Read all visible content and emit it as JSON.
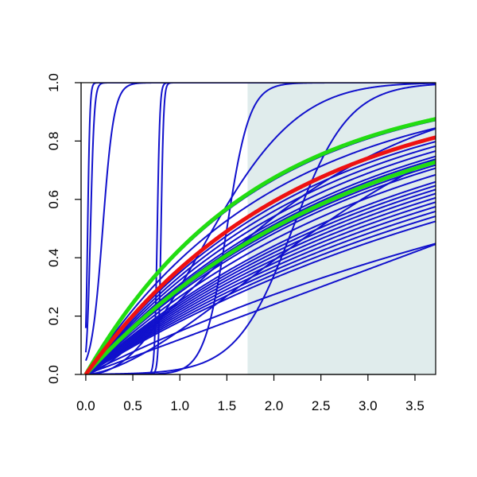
{
  "chart_data": {
    "type": "line",
    "title": "",
    "xlabel": "",
    "ylabel": "",
    "xlim": [
      -0.05,
      3.72
    ],
    "ylim": [
      0,
      1
    ],
    "x_ticks": [
      "0.0",
      "0.5",
      "1.0",
      "1.5",
      "2.0",
      "2.5",
      "3.0",
      "3.5"
    ],
    "y_ticks": [
      "0.0",
      "0.2",
      "0.4",
      "0.6",
      "0.8",
      "1.0"
    ],
    "shaded_region": {
      "x_from": 1.72,
      "x_to": 3.72,
      "color": "#e0ecec"
    },
    "colors": {
      "ensemble": "#1111cc",
      "green": "#22dd11",
      "red": "#ee1111",
      "axis": "#000000"
    },
    "series": [
      {
        "color": "ensemble",
        "kind": "logistic",
        "mid": 0.02,
        "scale": 0.012
      },
      {
        "color": "ensemble",
        "kind": "logistic",
        "mid": 0.05,
        "scale": 0.02
      },
      {
        "color": "ensemble",
        "kind": "logistic",
        "mid": 0.18,
        "scale": 0.06
      },
      {
        "color": "ensemble",
        "kind": "logistic",
        "mid": 0.76,
        "scale": 0.014
      },
      {
        "color": "ensemble",
        "kind": "logistic",
        "mid": 0.8,
        "scale": 0.014
      },
      {
        "color": "ensemble",
        "kind": "logistic",
        "mid": 1.5,
        "scale": 0.12
      },
      {
        "color": "ensemble",
        "kind": "logistic",
        "mid": 2.2,
        "scale": 0.3
      },
      {
        "color": "ensemble",
        "kind": "sat",
        "k": 0.55
      },
      {
        "color": "ensemble",
        "kind": "sat",
        "k": 0.5
      },
      {
        "color": "ensemble",
        "kind": "sat",
        "k": 0.45
      },
      {
        "color": "ensemble",
        "kind": "sat",
        "k": 0.43
      },
      {
        "color": "ensemble",
        "kind": "sat",
        "k": 0.41
      },
      {
        "color": "ensemble",
        "kind": "sat",
        "k": 0.39
      },
      {
        "color": "ensemble",
        "kind": "sat",
        "k": 0.37
      },
      {
        "color": "ensemble",
        "kind": "sat",
        "k": 0.36
      },
      {
        "color": "ensemble",
        "kind": "sat",
        "k": 0.35
      },
      {
        "color": "ensemble",
        "kind": "sat",
        "k": 0.34
      },
      {
        "color": "ensemble",
        "kind": "sat",
        "k": 0.33
      },
      {
        "color": "ensemble",
        "kind": "sat",
        "k": 0.31
      },
      {
        "color": "ensemble",
        "kind": "sat",
        "k": 0.29
      },
      {
        "color": "ensemble",
        "kind": "sat",
        "k": 0.28
      },
      {
        "color": "ensemble",
        "kind": "sat",
        "k": 0.27
      },
      {
        "color": "ensemble",
        "kind": "sat",
        "k": 0.26
      },
      {
        "color": "ensemble",
        "kind": "sat",
        "k": 0.25
      },
      {
        "color": "ensemble",
        "kind": "sat",
        "k": 0.24
      },
      {
        "color": "ensemble",
        "kind": "sat",
        "k": 0.23
      },
      {
        "color": "ensemble",
        "kind": "sat",
        "k": 0.22
      },
      {
        "color": "ensemble",
        "kind": "sat",
        "k": 0.21
      },
      {
        "color": "ensemble",
        "kind": "sat",
        "k": 0.2
      },
      {
        "color": "ensemble",
        "kind": "sat",
        "k": 0.16
      },
      {
        "color": "ensemble",
        "kind": "linear",
        "slope": 0.12
      },
      {
        "color": "ensemble",
        "kind": "weibull",
        "lambda": 1.6,
        "k": 2.2
      },
      {
        "color": "ensemble",
        "kind": "weibull",
        "lambda": 2.4,
        "k": 1.4
      },
      {
        "color": "ensemble",
        "kind": "weibull",
        "lambda": 3.1,
        "k": 1.6
      },
      {
        "color": "green",
        "kind": "sat",
        "k": 0.56
      },
      {
        "color": "green",
        "kind": "sat",
        "k": 0.35
      },
      {
        "color": "red",
        "kind": "sat",
        "k": 0.45
      }
    ]
  }
}
